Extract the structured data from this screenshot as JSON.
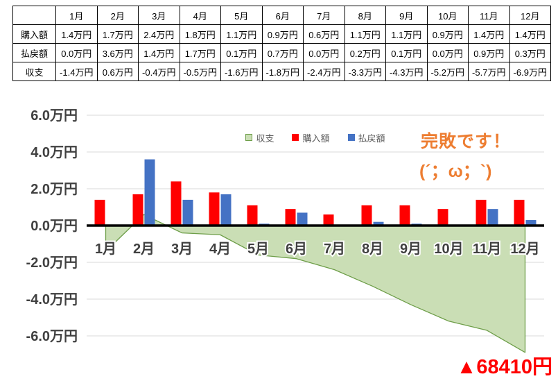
{
  "table": {
    "corner_label": "",
    "column_headers": [
      "1月",
      "2月",
      "3月",
      "4月",
      "5月",
      "6月",
      "7月",
      "8月",
      "9月",
      "10月",
      "11月",
      "12月"
    ],
    "rows": [
      {
        "label": "購入額",
        "cells": [
          "1.4万円",
          "1.7万円",
          "2.4万円",
          "1.8万円",
          "1.1万円",
          "0.9万円",
          "0.6万円",
          "1.1万円",
          "1.1万円",
          "0.9万円",
          "1.4万円",
          "1.4万円"
        ]
      },
      {
        "label": "払戻額",
        "cells": [
          "0.0万円",
          "3.6万円",
          "1.4万円",
          "1.7万円",
          "0.1万円",
          "0.7万円",
          "0.0万円",
          "0.2万円",
          "0.1万円",
          "0.0万円",
          "0.9万円",
          "0.3万円"
        ]
      },
      {
        "label": "収支",
        "cells": [
          "-1.4万円",
          "0.6万円",
          "-0.4万円",
          "-0.5万円",
          "-1.6万円",
          "-1.8万円",
          "-2.4万円",
          "-3.3万円",
          "-4.3万円",
          "-5.2万円",
          "-5.7万円",
          "-6.9万円"
        ]
      }
    ]
  },
  "chart_data": {
    "type": "combo",
    "categories": [
      "1月",
      "2月",
      "3月",
      "4月",
      "5月",
      "6月",
      "7月",
      "8月",
      "9月",
      "10月",
      "11月",
      "12月"
    ],
    "series": [
      {
        "name": "収支",
        "type": "area",
        "fill": "#cadeb5",
        "stroke": "#6e9e49",
        "values": [
          -1.4,
          0.6,
          -0.4,
          -0.5,
          -1.6,
          -1.8,
          -2.4,
          -3.3,
          -4.3,
          -5.2,
          -5.7,
          -6.9
        ]
      },
      {
        "name": "購入額",
        "type": "bar",
        "color": "#ff0000",
        "values": [
          1.4,
          1.7,
          2.4,
          1.8,
          1.1,
          0.9,
          0.6,
          1.1,
          1.1,
          0.9,
          1.4,
          1.4
        ]
      },
      {
        "name": "払戻額",
        "type": "bar",
        "color": "#4472c4",
        "values": [
          0.0,
          3.6,
          1.4,
          1.7,
          0.1,
          0.7,
          0.0,
          0.2,
          0.1,
          0.0,
          0.9,
          0.3
        ]
      }
    ],
    "title": "",
    "xlabel": "",
    "ylabel": "",
    "ylim": [
      -6,
      6
    ],
    "ytick_labels": [
      "6.0万円",
      "4.0万円",
      "2.0万円",
      "0.0万円",
      "-2.0万円",
      "-4.0万円",
      "-6.0万円"
    ],
    "grid": true,
    "legend_position": "top",
    "axis_text_color": "#404040",
    "gridline_color": "#d9d9d9",
    "zero_axis_color": "#000000"
  },
  "annotations": {
    "headline": "完敗です！",
    "kaomoji": "(´；ω；`)",
    "total": "▲68410円",
    "headline_color": "#ed7d31",
    "total_color": "#ff0000"
  }
}
